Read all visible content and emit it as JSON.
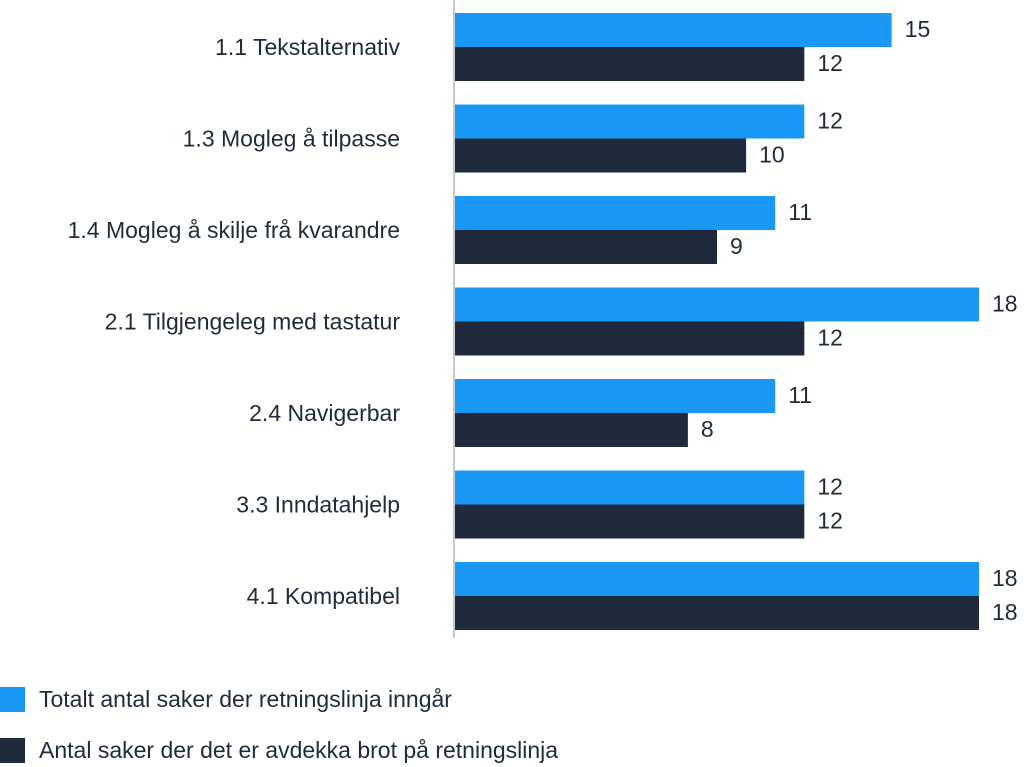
{
  "colors": {
    "series_total": "#1a98f5",
    "series_breach": "#1f2a3d",
    "axis": "#c8c8c8",
    "text": "#1f2a3d"
  },
  "chart_data": {
    "type": "bar",
    "orientation": "horizontal",
    "categories": [
      "1.1 Tekstalternativ",
      "1.3 Mogleg å tilpasse",
      "1.4 Mogleg å skilje frå kvarandre",
      "2.1 Tilgjengeleg med tastatur",
      "2.4 Navigerbar",
      "3.3 Inndatahjelp",
      "4.1 Kompatibel"
    ],
    "series": [
      {
        "name": "Totalt antal saker der retningslinja inngår",
        "values": [
          15,
          12,
          11,
          18,
          11,
          12,
          18
        ]
      },
      {
        "name": "Antal saker der det er avdekka brot på retningslinja",
        "values": [
          12,
          10,
          9,
          12,
          8,
          12,
          18
        ]
      }
    ],
    "xlim": [
      0,
      18
    ],
    "grid": false,
    "legend_position": "bottom-left",
    "data_labels": true
  }
}
